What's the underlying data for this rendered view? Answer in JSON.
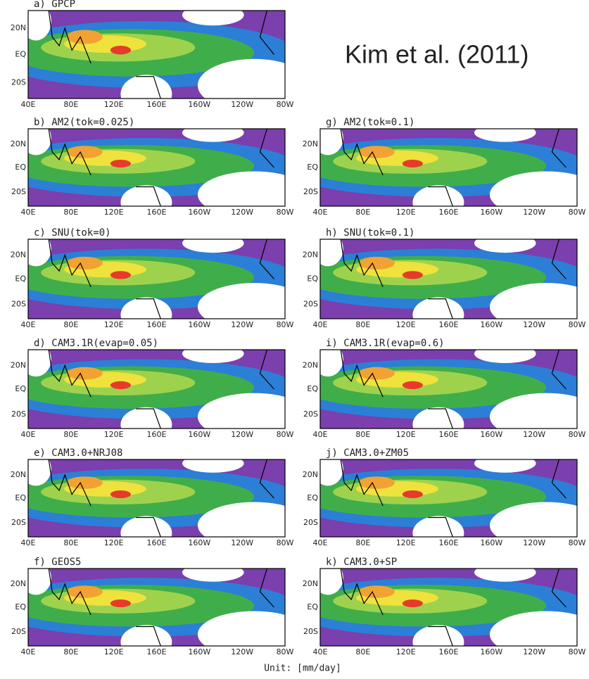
{
  "title": "Kim et al. (2011)",
  "unit": "Unit: [mm/day]",
  "lat_labels": [
    "20N",
    "EQ",
    "20S"
  ],
  "lon_labels": [
    "40E",
    "80E",
    "120E",
    "160E",
    "160W",
    "120W",
    "80W"
  ],
  "panels": [
    {
      "label": "a) GPCP"
    },
    {
      "label": "b) AM2(tok=0.025)"
    },
    {
      "label": "c) SNU(tok=0)"
    },
    {
      "label": "d) CAM3.1R(evap=0.05)"
    },
    {
      "label": "e) CAM3.0+NRJ08"
    },
    {
      "label": "f) GEOS5"
    },
    {
      "label": "g) AM2(tok=0.1)"
    },
    {
      "label": "h) SNU(tok=0.1)"
    },
    {
      "label": "i) CAM3.1R(evap=0.6)"
    },
    {
      "label": "j) CAM3.0+ZM05"
    },
    {
      "label": "k) CAM3.0+SP"
    }
  ]
}
